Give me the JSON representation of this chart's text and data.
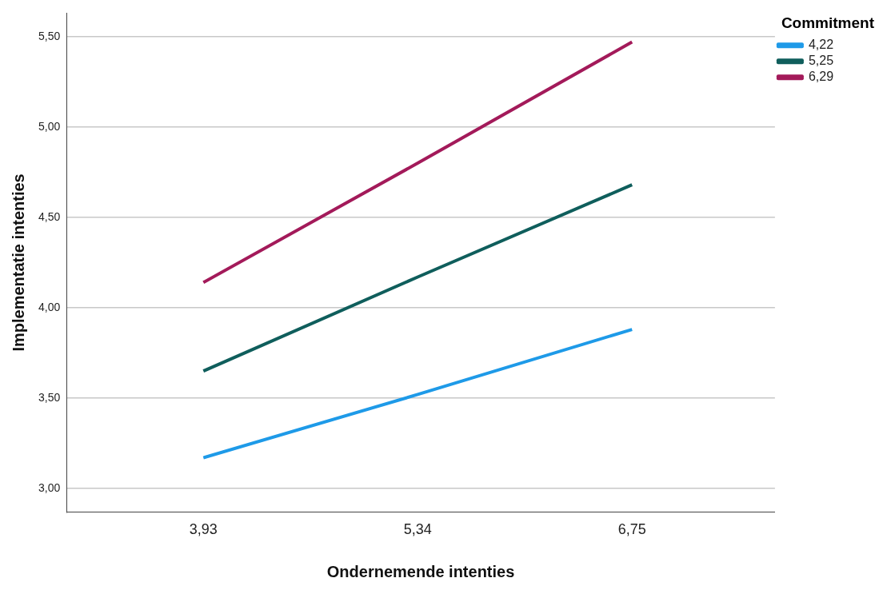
{
  "chart_data": {
    "type": "line",
    "xlabel": "Ondernemende intenties",
    "ylabel": "Implementatie intenties",
    "legend_title": "Commitment",
    "x": [
      3.93,
      5.34,
      6.75
    ],
    "series": [
      {
        "name": "4,22",
        "color": "#1e9ae8",
        "values": [
          3.17,
          3.52,
          3.88
        ]
      },
      {
        "name": "5,25",
        "color": "#0f5e5c",
        "values": [
          3.65,
          4.17,
          4.68
        ]
      },
      {
        "name": "6,29",
        "color": "#a31a5a",
        "values": [
          4.14,
          4.8,
          5.47
        ]
      }
    ],
    "xlim": [
      3.03,
      7.69
    ],
    "xticks": [
      {
        "value": 3.93,
        "label": "3,93"
      },
      {
        "value": 5.34,
        "label": "5,34"
      },
      {
        "value": 6.75,
        "label": "6,75"
      }
    ],
    "ylim": [
      2.87,
      5.63
    ],
    "yticks": [
      {
        "value": 3,
        "label": "3,00"
      },
      {
        "value": 3.5,
        "label": "3,50"
      },
      {
        "value": 4,
        "label": "4,00"
      },
      {
        "value": 4.5,
        "label": "4,50"
      },
      {
        "value": 5,
        "label": "5,00"
      },
      {
        "value": 5.5,
        "label": "5,50"
      }
    ],
    "grid": "y",
    "legend": "top right",
    "marker": "none",
    "line_style": "solid"
  }
}
